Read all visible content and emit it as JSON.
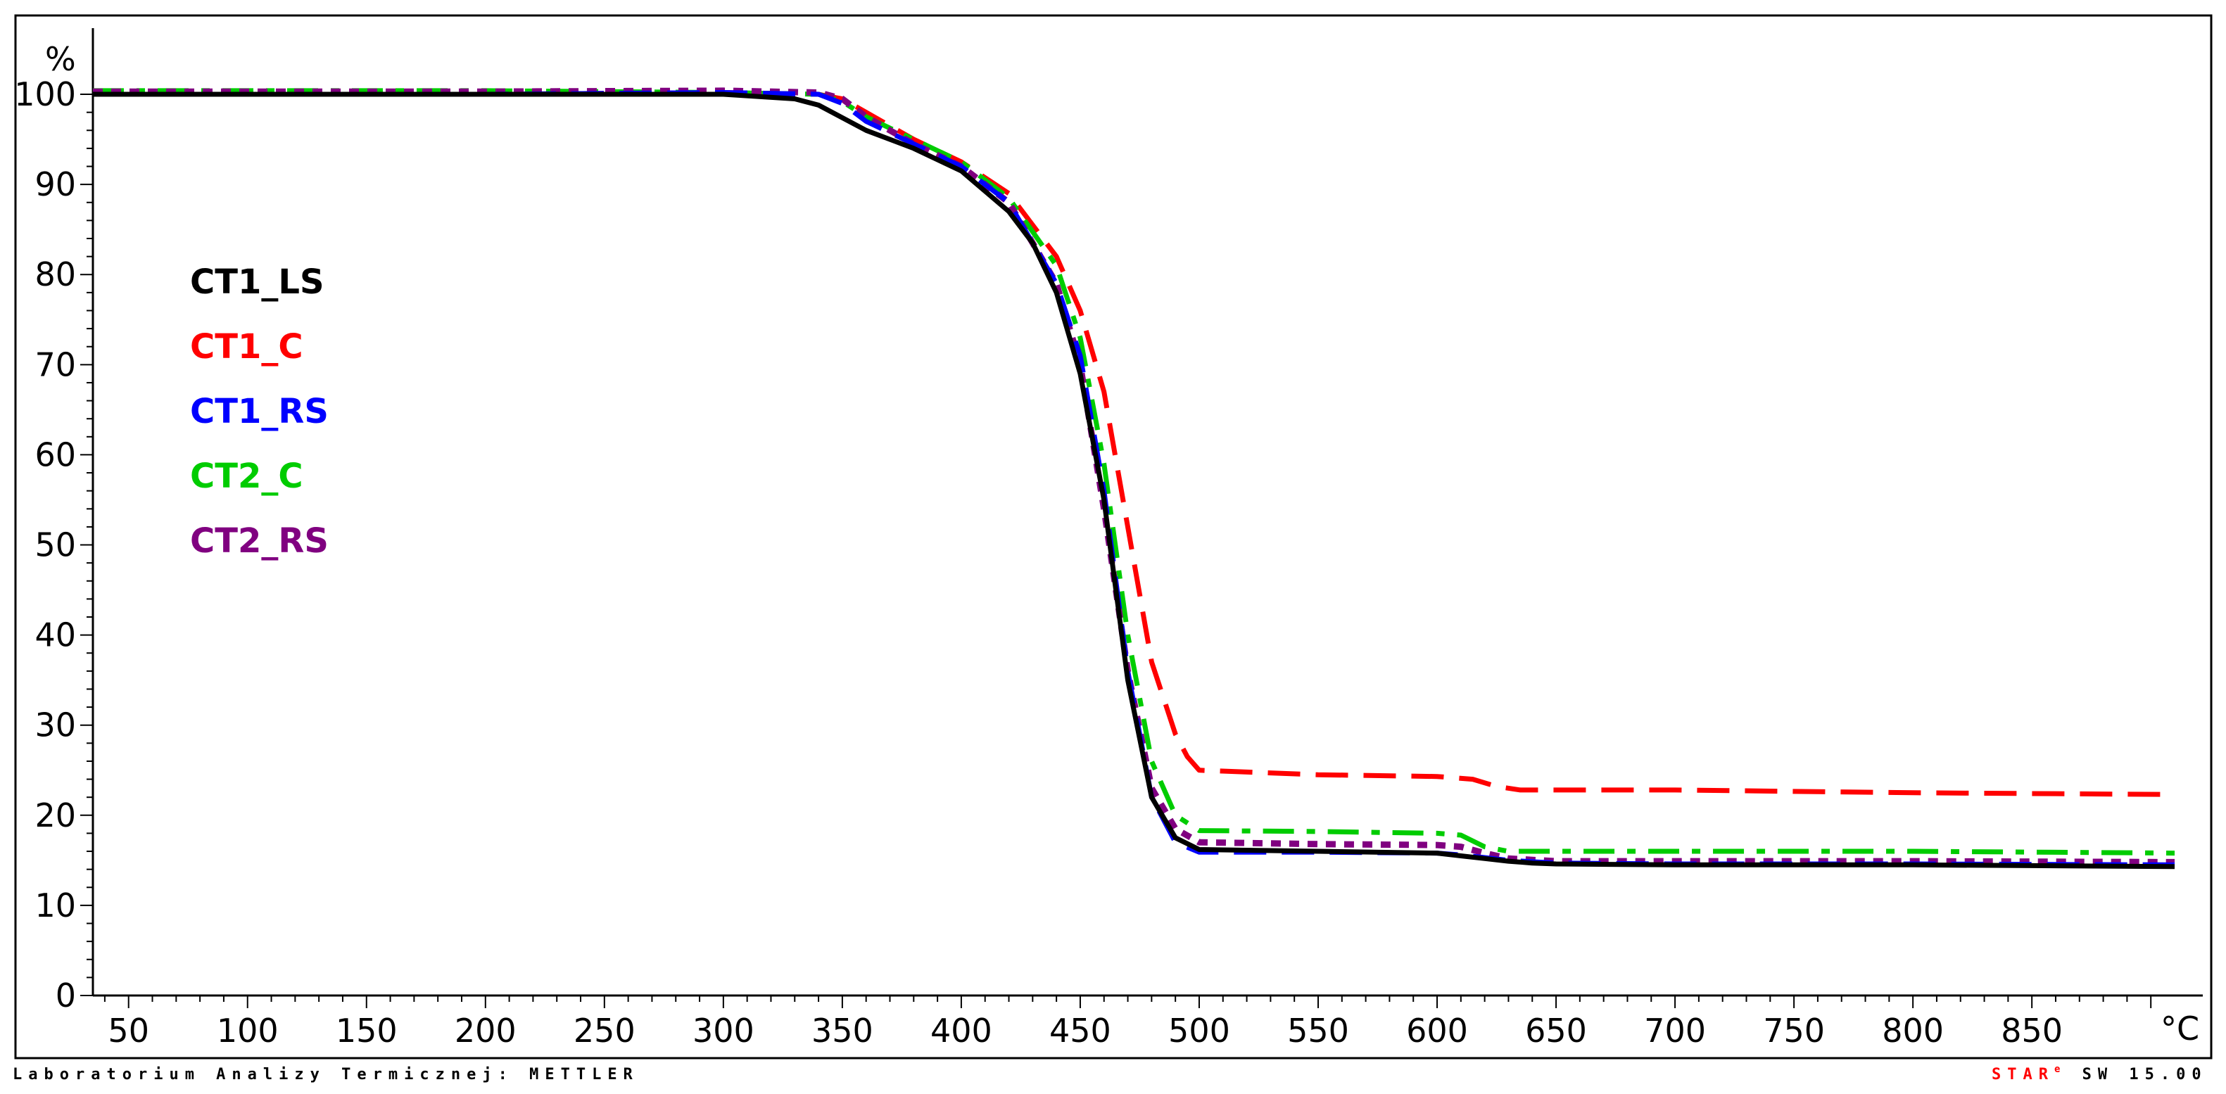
{
  "chart_data": {
    "type": "line",
    "ylabel": "%",
    "xlabel": "°C",
    "xlim": [
      35,
      910
    ],
    "ylim": [
      0,
      105
    ],
    "x_ticks": [
      50,
      100,
      150,
      200,
      250,
      300,
      350,
      400,
      450,
      500,
      550,
      600,
      650,
      700,
      750,
      800,
      850
    ],
    "y_ticks": [
      0,
      10,
      20,
      30,
      40,
      50,
      60,
      70,
      80,
      90,
      100
    ],
    "x_tick_labels": [
      "50",
      "100",
      "150",
      "200",
      "250",
      "300",
      "350",
      "400",
      "450",
      "500",
      "550",
      "600",
      "650",
      "700",
      "750",
      "800",
      "850"
    ],
    "y_tick_labels": [
      "0",
      "10",
      "20",
      "30",
      "40",
      "50",
      "60",
      "70",
      "80",
      "90",
      "100"
    ],
    "legend_position": "left",
    "series": [
      {
        "name": "CT1_LS",
        "color": "#000000",
        "style": "solid",
        "x": [
          35,
          100,
          200,
          300,
          330,
          340,
          360,
          380,
          400,
          420,
          430,
          440,
          450,
          460,
          470,
          480,
          490,
          500,
          550,
          600,
          610,
          620,
          630,
          640,
          650,
          700,
          800,
          910
        ],
        "y": [
          100,
          100,
          100,
          100,
          99.5,
          98.8,
          96,
          94,
          91.5,
          87,
          83.5,
          78,
          69,
          55,
          35,
          22,
          17.5,
          16.2,
          16,
          15.8,
          15.5,
          15.2,
          14.9,
          14.7,
          14.6,
          14.5,
          14.5,
          14.3
        ]
      },
      {
        "name": "CT1_C",
        "color": "#ff0000",
        "style": "dashed",
        "x": [
          35,
          100,
          200,
          300,
          340,
          350,
          360,
          380,
          400,
          420,
          440,
          450,
          460,
          470,
          480,
          490,
          495,
          500,
          550,
          600,
          615,
          625,
          635,
          650,
          700,
          800,
          910
        ],
        "y": [
          100,
          100,
          100,
          100.2,
          100,
          99.5,
          98,
          95,
          92.5,
          89,
          82,
          76,
          67,
          52,
          37,
          29,
          26.5,
          25,
          24.5,
          24.3,
          24,
          23.2,
          22.8,
          22.8,
          22.8,
          22.5,
          22.3
        ]
      },
      {
        "name": "CT1_RS",
        "color": "#0000ff",
        "style": "dashed",
        "x": [
          35,
          100,
          200,
          300,
          340,
          350,
          360,
          380,
          400,
          420,
          440,
          450,
          460,
          470,
          480,
          490,
          500,
          550,
          600,
          610,
          620,
          630,
          650,
          700,
          800,
          910
        ],
        "y": [
          100,
          100,
          100,
          100.2,
          100,
          99,
          97,
          94.5,
          92,
          88,
          79,
          71,
          56,
          36,
          22,
          17,
          15.9,
          15.9,
          15.8,
          15.6,
          15.3,
          15,
          14.7,
          14.6,
          14.6,
          14.5
        ]
      },
      {
        "name": "CT2_C",
        "color": "#00cc00",
        "style": "dashdot",
        "x": [
          35,
          100,
          200,
          300,
          340,
          350,
          360,
          380,
          400,
          420,
          440,
          450,
          460,
          470,
          480,
          490,
          500,
          550,
          600,
          610,
          620,
          630,
          650,
          700,
          800,
          910
        ],
        "y": [
          100.4,
          100.4,
          100.4,
          100.2,
          100,
          99.2,
          97.5,
          95,
          92.5,
          88.5,
          81,
          73,
          59,
          40,
          26,
          20,
          18.3,
          18.2,
          18,
          17.8,
          16.5,
          16,
          16,
          16,
          16,
          15.8
        ]
      },
      {
        "name": "CT2_RS",
        "color": "#800080",
        "style": "dotted",
        "x": [
          35,
          100,
          200,
          300,
          340,
          350,
          360,
          380,
          400,
          420,
          440,
          450,
          460,
          470,
          480,
          490,
          500,
          550,
          600,
          610,
          620,
          630,
          650,
          700,
          800,
          910
        ],
        "y": [
          100.3,
          100.3,
          100.3,
          100.4,
          100.2,
          99.5,
          97.5,
          94.5,
          92,
          88,
          79,
          70,
          54,
          36,
          23,
          18.5,
          17,
          16.8,
          16.7,
          16.5,
          15.8,
          15.2,
          14.9,
          14.9,
          14.9,
          14.8
        ]
      }
    ]
  },
  "footer": {
    "left_text": "Laboratorium Analizy Termicznej: METTLER",
    "right_prefix": "STAR",
    "right_mark": "e",
    "right_suffix": " SW 15.00",
    "right_accent": "#ff0000"
  }
}
